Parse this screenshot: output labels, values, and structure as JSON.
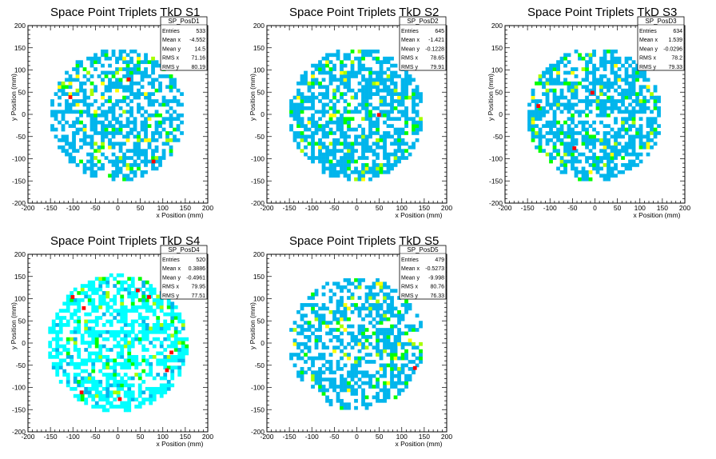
{
  "axis_labels": {
    "x": "x Position (mm)",
    "y": "y Position (mm)"
  },
  "colors": {
    "cyan_light": "#00ffff",
    "cyan": "#00b5ec",
    "green": "#00ff00",
    "yellow_green": "#a6ff00",
    "yellow": "#ffff00",
    "red": "#ff0000"
  },
  "chart_data": [
    {
      "type": "heatmap",
      "title": "Space Point Triplets TkD S1",
      "hist_name": "SP_PosD1",
      "stats": [
        [
          "Entries",
          "533"
        ],
        [
          "Mean x",
          "-4.552"
        ],
        [
          "Mean y",
          "14.5"
        ],
        [
          "RMS x",
          "71.16"
        ],
        [
          "RMS y",
          "80.19"
        ]
      ],
      "xlabel": "x Position (mm)",
      "ylabel": "y Position (mm)",
      "xlim": [
        -200,
        200
      ],
      "ylim": [
        -200,
        200
      ],
      "x_ticks": [
        -200,
        -150,
        -100,
        -50,
        0,
        50,
        100,
        150,
        200
      ],
      "y_ticks": [
        -200,
        -150,
        -100,
        -50,
        0,
        50,
        100,
        150,
        200
      ],
      "region_radius": 150,
      "occupancy": 0.55,
      "bin_size": 8,
      "red_bins": [
        [
          -110,
          35
        ],
        [
          20,
          75
        ],
        [
          75,
          -110
        ]
      ],
      "seed": 11
    },
    {
      "type": "heatmap",
      "title": "Space Point Triplets TkD S2",
      "hist_name": "SP_PosD2",
      "stats": [
        [
          "Entries",
          "645"
        ],
        [
          "Mean x",
          "-1.421"
        ],
        [
          "Mean y",
          "-0.1228"
        ],
        [
          "RMS x",
          "78.65"
        ],
        [
          "RMS y",
          "79.91"
        ]
      ],
      "xlabel": "x Position (mm)",
      "ylabel": "y Position (mm)",
      "xlim": [
        -200,
        200
      ],
      "ylim": [
        -200,
        200
      ],
      "x_ticks": [
        -200,
        -150,
        -100,
        -50,
        0,
        50,
        100,
        150,
        200
      ],
      "y_ticks": [
        -200,
        -150,
        -100,
        -50,
        0,
        50,
        100,
        150,
        200
      ],
      "region_radius": 150,
      "occupancy": 0.62,
      "bin_size": 8,
      "red_bins": [
        [
          45,
          -5
        ]
      ],
      "seed": 23
    },
    {
      "type": "heatmap",
      "title": "Space Point Triplets TkD S3",
      "hist_name": "SP_PosD3",
      "stats": [
        [
          "Entries",
          "634"
        ],
        [
          "Mean x",
          "1.539"
        ],
        [
          "Mean y",
          "-0.0296"
        ],
        [
          "RMS x",
          "78.2"
        ],
        [
          "RMS y",
          "79.33"
        ]
      ],
      "xlabel": "x Position (mm)",
      "ylabel": "y Position (mm)",
      "xlim": [
        -200,
        200
      ],
      "ylim": [
        -200,
        200
      ],
      "x_ticks": [
        -200,
        -150,
        -100,
        -50,
        0,
        50,
        100,
        150,
        200
      ],
      "y_ticks": [
        -200,
        -150,
        -100,
        -50,
        0,
        50,
        100,
        150,
        200
      ],
      "region_radius": 150,
      "occupancy": 0.6,
      "bin_size": 8,
      "red_bins": [
        [
          -130,
          15
        ],
        [
          -10,
          45
        ],
        [
          -50,
          -80
        ]
      ],
      "seed": 37
    },
    {
      "type": "heatmap",
      "title": "Space Point Triplets TkD S4",
      "hist_name": "SP_PosD4",
      "stats": [
        [
          "Entries",
          "520"
        ],
        [
          "Mean x",
          "0.3886"
        ],
        [
          "Mean y",
          "-0.4961"
        ],
        [
          "RMS x",
          "79.95"
        ],
        [
          "RMS y",
          "77.51"
        ]
      ],
      "xlabel": "x Position (mm)",
      "ylabel": "y Position (mm)",
      "xlim": [
        -200,
        200
      ],
      "ylim": [
        -200,
        200
      ],
      "x_ticks": [
        -200,
        -150,
        -100,
        -50,
        0,
        50,
        100,
        150,
        200
      ],
      "y_ticks": [
        -200,
        -150,
        -100,
        -50,
        0,
        50,
        100,
        150,
        200
      ],
      "region_radius": 155,
      "occupancy": 0.58,
      "bin_size": 8,
      "base_color": "cyan_light",
      "red_bins": [
        [
          -105,
          100
        ],
        [
          -80,
          75
        ],
        [
          40,
          115
        ],
        [
          65,
          100
        ],
        [
          115,
          -25
        ],
        [
          105,
          -65
        ],
        [
          -85,
          -115
        ],
        [
          0,
          -130
        ]
      ],
      "seed": 53
    },
    {
      "type": "heatmap",
      "title": "Space Point Triplets TkD S5",
      "hist_name": "SP_PosD5",
      "stats": [
        [
          "Entries",
          "479"
        ],
        [
          "Mean x",
          "-0.5273"
        ],
        [
          "Mean y",
          "-9.998"
        ],
        [
          "RMS x",
          "80.76"
        ],
        [
          "RMS y",
          "76.33"
        ]
      ],
      "xlabel": "x Position (mm)",
      "ylabel": "y Position (mm)",
      "xlim": [
        -200,
        200
      ],
      "ylim": [
        -200,
        200
      ],
      "x_ticks": [
        -200,
        -150,
        -100,
        -50,
        0,
        50,
        100,
        150,
        200
      ],
      "y_ticks": [
        -200,
        -150,
        -100,
        -50,
        0,
        50,
        100,
        150,
        200
      ],
      "region_radius": 150,
      "occupancy": 0.52,
      "bin_size": 8,
      "red_bins": [
        [
          125,
          -60
        ]
      ],
      "seed": 71
    }
  ]
}
